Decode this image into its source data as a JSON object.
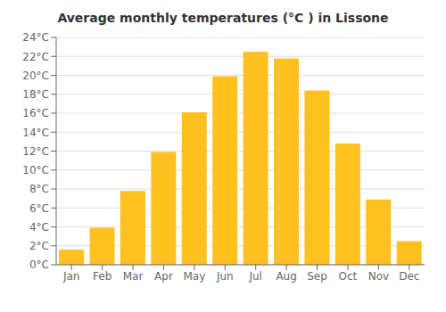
{
  "chart_data": {
    "type": "bar",
    "title": "Average monthly temperatures (°C ) in Lissone",
    "categories": [
      "Jan",
      "Feb",
      "Mar",
      "Apr",
      "May",
      "Jun",
      "Jul",
      "Aug",
      "Sep",
      "Oct",
      "Nov",
      "Dec"
    ],
    "values": [
      1.6,
      3.9,
      7.8,
      11.9,
      16.1,
      19.9,
      22.5,
      21.8,
      18.4,
      12.8,
      6.9,
      2.5
    ],
    "color": "#FFC020",
    "ylim": [
      0,
      24
    ],
    "yticks": [
      {
        "value": 0,
        "label": "0°C"
      },
      {
        "value": 2,
        "label": "2°C"
      },
      {
        "value": 4,
        "label": "4°C"
      },
      {
        "value": 6,
        "label": "6°C"
      },
      {
        "value": 8,
        "label": "8°C"
      },
      {
        "value": 10,
        "label": "10°C"
      },
      {
        "value": 12,
        "label": "12°C"
      },
      {
        "value": 14,
        "label": "14°C"
      },
      {
        "value": 16,
        "label": "16°C"
      },
      {
        "value": 18,
        "label": "18°C"
      },
      {
        "value": 20,
        "label": "20°C"
      },
      {
        "value": 22,
        "label": "22°C"
      },
      {
        "value": 24,
        "label": "24°C"
      }
    ],
    "grid": true
  }
}
